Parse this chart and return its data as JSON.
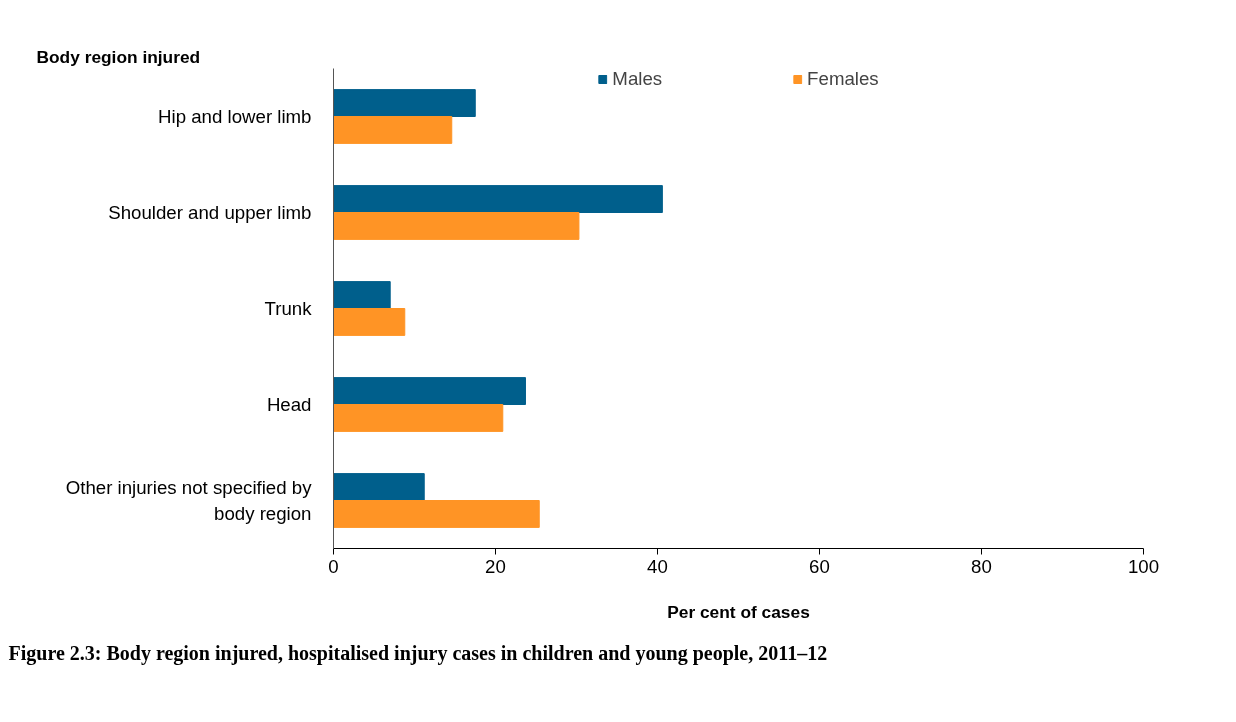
{
  "chart_data": {
    "type": "bar",
    "orientation": "horizontal",
    "xlabel": "Per cent of cases",
    "categories": [
      "Hip and lower limb",
      "Shoulder and upper limb",
      "Trunk",
      "Head",
      "Other injuries not specified by body region"
    ],
    "series": [
      {
        "name": "Males",
        "color": "#005f8c",
        "values": [
          17.5,
          40.6,
          7.0,
          23.7,
          11.2
        ]
      },
      {
        "name": "Females",
        "color": "#ff9425",
        "values": [
          14.6,
          30.3,
          8.8,
          20.9,
          25.4
        ]
      }
    ],
    "xlim": [
      0,
      100
    ],
    "xticks": [
      0,
      20,
      40,
      60,
      80,
      100
    ],
    "grid": false,
    "legend": "top",
    "annotations": [
      "Body region injured",
      "Figure 2.3: Body region injured, hospitalised injury cases in children and young people, 2011–12"
    ]
  }
}
